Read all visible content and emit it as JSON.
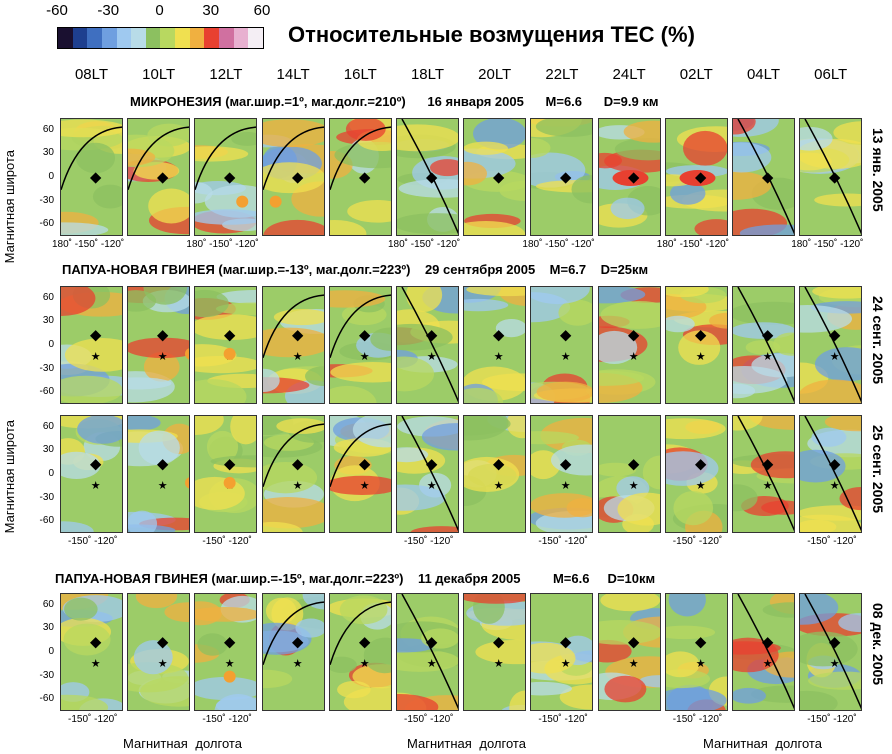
{
  "chart_data": {
    "type": "heatmap",
    "title": "Относительные возмущения TEC (%)",
    "colorbar": {
      "ticks": [
        "-60",
        "-30",
        "0",
        "30",
        "60"
      ],
      "range": [
        -60,
        60
      ],
      "colors": [
        "#1a1030",
        "#1e3f8f",
        "#3f6fc0",
        "#6f9fe0",
        "#9fc9f0",
        "#b8dce8",
        "#8cc060",
        "#b8d860",
        "#f0e050",
        "#f0b040",
        "#e84030",
        "#d070a0",
        "#e8b0d0",
        "#f4eef4"
      ]
    },
    "columns": [
      "08LT",
      "10LT",
      "12LT",
      "14LT",
      "16LT",
      "18LT",
      "20LT",
      "22LT",
      "24LT",
      "02LT",
      "04LT",
      "06LT"
    ],
    "ylabel": "Магнитная широта",
    "xlabel": "Магнитная долгота",
    "yticks": [
      "60",
      "30",
      "0",
      "-30",
      "-60"
    ],
    "ylim": [
      -75,
      75
    ],
    "rows": [
      {
        "title": "МИКРОНЕЗИЯ (маг.шир.=1º, маг.долг.=210º)      16 января 2005      M=6.6      D=9.9 км",
        "side": "13 янв. 2005",
        "xticks": "180˚ -150˚ -120˚"
      },
      {
        "title": "ПАПУА-НОВАЯ ГВИНЕЯ (маг.шир.=-13º, маг.долг.=223º)    29 сентября 2005    M=6.7    D=25км",
        "side": "24 сент. 2005",
        "xticks": ""
      },
      {
        "title": "",
        "side": "25 сент. 2005",
        "xticks": "-150˚ -120˚"
      },
      {
        "title": "ПАПУА-НОВАЯ ГВИНЕЯ (маг.шир.=-15º, маг.долг.=223º)    11 декабря 2005         M=6.6     D=10км",
        "side": "08 дек. 2005",
        "xticks": "-150˚ -120˚"
      }
    ]
  }
}
